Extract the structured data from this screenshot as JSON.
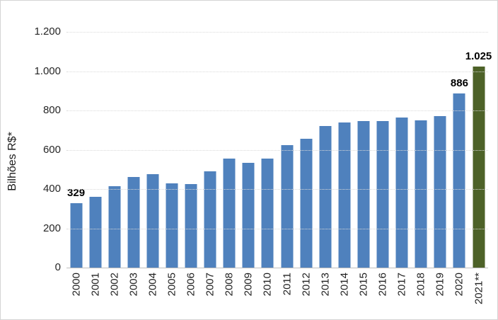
{
  "chart_data": {
    "type": "bar",
    "title": "",
    "xlabel": "",
    "ylabel": "Bilhões R$*",
    "ylim": [
      0,
      1200
    ],
    "ytick_step": 200,
    "ytick_labels": [
      "0",
      "200",
      "400",
      "600",
      "800",
      "1.000",
      "1.200"
    ],
    "grid": "horizontal-dotted",
    "legend": "none",
    "categories": [
      "2000",
      "2001",
      "2002",
      "2003",
      "2004",
      "2005",
      "2006",
      "2007",
      "2008",
      "2009",
      "2010",
      "2011",
      "2012",
      "2013",
      "2014",
      "2015",
      "2016",
      "2017",
      "2018",
      "2019",
      "2020",
      "2021**"
    ],
    "values": [
      329,
      360,
      415,
      460,
      475,
      430,
      425,
      490,
      555,
      535,
      555,
      625,
      655,
      720,
      740,
      745,
      745,
      765,
      750,
      770,
      886,
      1025
    ],
    "bar_labels": [
      "329",
      "",
      "",
      "",
      "",
      "",
      "",
      "",
      "",
      "",
      "",
      "",
      "",
      "",
      "",
      "",
      "",
      "",
      "",
      "",
      "886",
      "1.025"
    ],
    "highlight_index": 21,
    "colors": {
      "bar": "#4F81BD",
      "highlight_bar": "#4D6228",
      "gridline": "#D9D9D9",
      "axis_line": "#BFBFBF",
      "tick_text": "#262626",
      "data_label_text": "#000000",
      "background": "#FFFFFF",
      "frame_border": "#D4D4D4"
    }
  }
}
